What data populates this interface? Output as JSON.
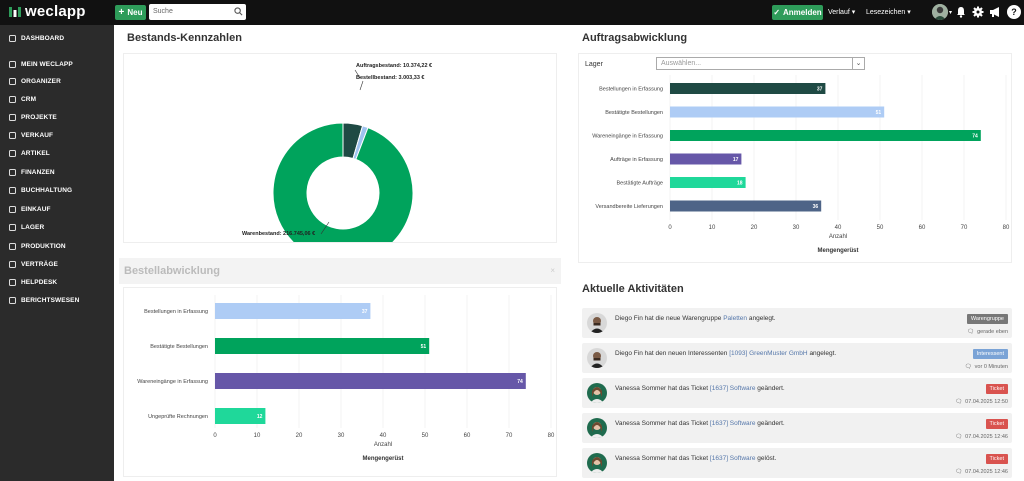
{
  "app": {
    "name": "weclapp"
  },
  "topbar": {
    "new_label": "Neu",
    "search_placeholder": "Suche",
    "signin_label": "Anmelden",
    "history_label": "Verlauf",
    "bookmarks_label": "Lesezeichen"
  },
  "sidebar": {
    "items": [
      {
        "label": "DASHBOARD",
        "icon": "dashboard-icon"
      },
      {
        "label": "MEIN WECLAPP",
        "icon": "home-icon"
      },
      {
        "label": "ORGANIZER",
        "icon": "organizer-icon"
      },
      {
        "label": "CRM",
        "icon": "crm-icon"
      },
      {
        "label": "PROJEKTE",
        "icon": "projects-icon"
      },
      {
        "label": "VERKAUF",
        "icon": "sales-icon"
      },
      {
        "label": "ARTIKEL",
        "icon": "articles-icon"
      },
      {
        "label": "FINANZEN",
        "icon": "finance-icon"
      },
      {
        "label": "BUCHHALTUNG",
        "icon": "accounting-icon"
      },
      {
        "label": "EINKAUF",
        "icon": "purchase-icon"
      },
      {
        "label": "LAGER",
        "icon": "warehouse-icon"
      },
      {
        "label": "PRODUKTION",
        "icon": "production-icon"
      },
      {
        "label": "VERTRÄGE",
        "icon": "contracts-icon"
      },
      {
        "label": "HELPDESK",
        "icon": "helpdesk-icon"
      },
      {
        "label": "BERICHTSWESEN",
        "icon": "reports-icon"
      }
    ]
  },
  "bestand": {
    "title": "Bestands-Kennzahlen",
    "labels": [
      "Auftragsbestand: 10.374,22 €",
      "Bestellbestand: 3.003,33 €",
      "Warenbestand: 216.745,06 €"
    ]
  },
  "bestell": {
    "title": "Bestellabwicklung",
    "xlabel": "Anzahl",
    "footer": "Mengengerüst"
  },
  "auftrag": {
    "title": "Auftragsabwicklung",
    "lager_label": "Lager",
    "lager_placeholder": "Auswählen...",
    "xlabel": "Anzahl",
    "footer": "Mengengerüst"
  },
  "activities": {
    "title": "Aktuelle Aktivitäten",
    "items": [
      {
        "who": "Diego Fin",
        "pre": "hat die neue Warengruppe",
        "link": "Paletten",
        "post": "angelegt.",
        "badge": "Warengruppe",
        "badge_color": "#777777",
        "time": "gerade eben",
        "avatar": "man"
      },
      {
        "who": "Diego Fin",
        "pre": "hat den neuen Interessenten",
        "link": "[1093] GreenMuster GmbH",
        "post": "angelegt.",
        "badge": "Interessent",
        "badge_color": "#7aa3d6",
        "time": "vor 0 Minuten",
        "avatar": "man"
      },
      {
        "who": "Vanessa Sommer",
        "pre": "hat das Ticket",
        "link": "[1637] Software",
        "post": "geändert.",
        "badge": "Ticket",
        "badge_color": "#d9534f",
        "time": "07.04.2025 12:50",
        "avatar": "woman"
      },
      {
        "who": "Vanessa Sommer",
        "pre": "hat das Ticket",
        "link": "[1637] Software",
        "post": "geändert.",
        "badge": "Ticket",
        "badge_color": "#d9534f",
        "time": "07.04.2025 12:46",
        "avatar": "woman"
      },
      {
        "who": "Vanessa Sommer",
        "pre": "hat das Ticket",
        "link": "[1637] Software",
        "post": "gelöst.",
        "badge": "Ticket",
        "badge_color": "#d9534f",
        "time": "07.04.2025 12:46",
        "avatar": "woman"
      }
    ]
  },
  "chart_data": [
    {
      "type": "pie",
      "title": "Bestands-Kennzahlen",
      "categories": [
        "Auftragsbestand",
        "Bestellbestand",
        "Warenbestand"
      ],
      "values": [
        10374.22,
        3003.33,
        216745.06
      ],
      "colors": [
        "#1f4a44",
        "#9ec3f0",
        "#00a35c"
      ],
      "donut": true
    },
    {
      "type": "bar",
      "orientation": "horizontal",
      "title": "Bestellabwicklung",
      "categories": [
        "Bestellungen in Erfassung",
        "Bestätigte Bestellungen",
        "Wareneingänge in Erfassung",
        "Ungeprüfte Rechnungen"
      ],
      "values": [
        37,
        51,
        74,
        12
      ],
      "colors": [
        "#aeccf5",
        "#00a35c",
        "#6657a8",
        "#1fd89a"
      ],
      "xlabel": "Anzahl",
      "xlim": [
        0,
        80
      ],
      "ticks": [
        0,
        10,
        20,
        30,
        40,
        50,
        60,
        70,
        80
      ]
    },
    {
      "type": "bar",
      "orientation": "horizontal",
      "title": "Auftragsabwicklung",
      "categories": [
        "Bestellungen in Erfassung",
        "Bestätigte Bestellungen",
        "Wareneingänge in Erfassung",
        "Aufträge in Erfassung",
        "Bestätigte Aufträge",
        "Versandbereite Lieferungen"
      ],
      "values": [
        37,
        51,
        74,
        17,
        18,
        36
      ],
      "colors": [
        "#1f4a44",
        "#aeccf5",
        "#00a35c",
        "#6657a8",
        "#1fd89a",
        "#4e6487"
      ],
      "xlabel": "Anzahl",
      "xlim": [
        0,
        80
      ],
      "ticks": [
        0,
        10,
        20,
        30,
        40,
        50,
        60,
        70,
        80
      ]
    }
  ]
}
